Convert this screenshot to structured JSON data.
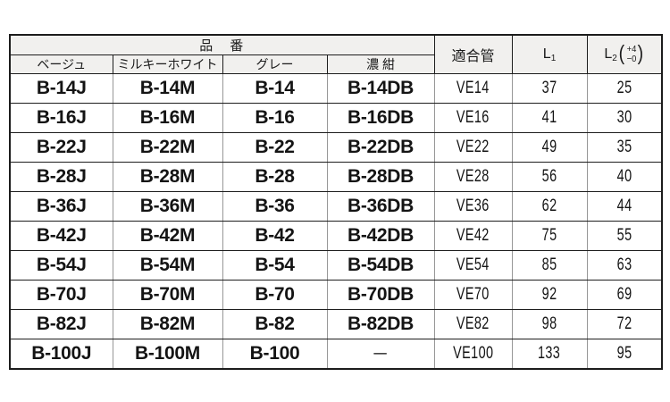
{
  "header": {
    "part_number_group": "品　番",
    "color_beige": "ベージュ",
    "color_milky_white": "ミルキーホワイト",
    "color_gray": "グレー",
    "color_dark_navy": "濃 紺",
    "pipe_label": "適合管",
    "l1_main": "L",
    "l1_sub": "1",
    "l2_main": "L",
    "l2_sub": "2",
    "l2_tol_plus": "+4",
    "l2_tol_minus": "−0"
  },
  "rows": [
    [
      "B-14J",
      "B-14M",
      "B-14",
      "B-14DB",
      "VE14",
      "37",
      "25"
    ],
    [
      "B-16J",
      "B-16M",
      "B-16",
      "B-16DB",
      "VE16",
      "41",
      "30"
    ],
    [
      "B-22J",
      "B-22M",
      "B-22",
      "B-22DB",
      "VE22",
      "49",
      "35"
    ],
    [
      "B-28J",
      "B-28M",
      "B-28",
      "B-28DB",
      "VE28",
      "56",
      "40"
    ],
    [
      "B-36J",
      "B-36M",
      "B-36",
      "B-36DB",
      "VE36",
      "62",
      "44"
    ],
    [
      "B-42J",
      "B-42M",
      "B-42",
      "B-42DB",
      "VE42",
      "75",
      "55"
    ],
    [
      "B-54J",
      "B-54M",
      "B-54",
      "B-54DB",
      "VE54",
      "85",
      "63"
    ],
    [
      "B-70J",
      "B-70M",
      "B-70",
      "B-70DB",
      "VE70",
      "92",
      "69"
    ],
    [
      "B-82J",
      "B-82M",
      "B-82",
      "B-82DB",
      "VE82",
      "98",
      "72"
    ],
    [
      "B-100J",
      "B-100M",
      "B-100",
      "—",
      "VE100",
      "133",
      "95"
    ]
  ],
  "palette": {
    "header_bg": "#f1f0ee",
    "grid_vertical_gray": "#979797",
    "grid_horizontal_black": "#1d1d1d",
    "outer_border_black": "#1c1c1c",
    "text_black": "#141414"
  }
}
